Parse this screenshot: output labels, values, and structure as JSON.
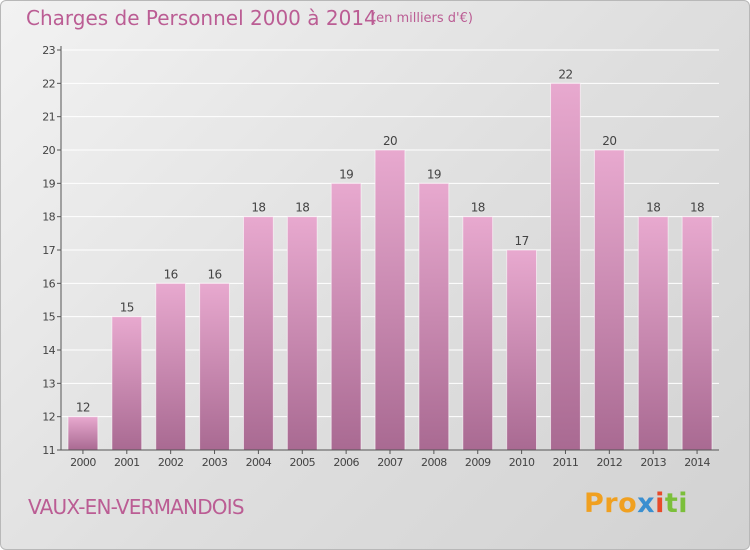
{
  "header": {
    "title": "Charges de Personnel 2000 à 2014",
    "subtitle": "(en milliers d'€)"
  },
  "location": "VAUX-EN-VERMANDOIS",
  "logo": {
    "text": "Proxiti",
    "parts": [
      "Pro",
      "x",
      "i",
      "ti"
    ]
  },
  "colors": {
    "title": "#bb5d94",
    "bar_top": "#e8a9cf",
    "bar_bottom": "#a96a92",
    "axis": "#555555",
    "grid": "#ffffff"
  },
  "chart_data": {
    "type": "bar",
    "categories": [
      "2000",
      "2001",
      "2002",
      "2003",
      "2004",
      "2005",
      "2006",
      "2007",
      "2008",
      "2009",
      "2010",
      "2011",
      "2012",
      "2013",
      "2014"
    ],
    "values": [
      12,
      15,
      16,
      16,
      18,
      18,
      19,
      20,
      19,
      18,
      17,
      22,
      20,
      18,
      18
    ],
    "yticks": [
      11,
      12,
      13,
      14,
      15,
      16,
      17,
      18,
      19,
      20,
      21,
      22,
      23
    ],
    "ylim": [
      11,
      23
    ],
    "grid": true,
    "data_labels": true
  }
}
